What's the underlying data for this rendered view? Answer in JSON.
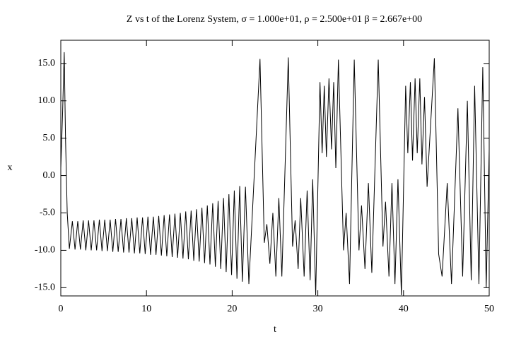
{
  "chart_data": {
    "type": "line",
    "title": "Z vs t of the Lorenz System, σ = 1.000e+01, ρ = 2.500e+01 β = 2.667e+00",
    "x_label": "t",
    "y_label": "x",
    "xlim": [
      0,
      50
    ],
    "xticks": [
      0,
      10,
      20,
      30,
      40,
      50
    ],
    "ylim": [
      -16.1,
      18.1
    ],
    "yticks": [
      {
        "value": -15,
        "label": "-15.0"
      },
      {
        "value": -10,
        "label": "-10.0"
      },
      {
        "value": -5,
        "label": "-5.0"
      },
      {
        "value": 0,
        "label": "0.0"
      },
      {
        "value": 5,
        "label": "5.0"
      },
      {
        "value": 10,
        "label": "10.0"
      },
      {
        "value": 15,
        "label": "15.0"
      }
    ],
    "grid": false,
    "series": [
      {
        "color": "#000000",
        "x": [
          0,
          0.2,
          0.4,
          0.55,
          0.75,
          1.0,
          1.35,
          1.66,
          1.98,
          2.29,
          2.61,
          2.92,
          3.24,
          3.55,
          3.87,
          4.18,
          4.5,
          4.81,
          5.13,
          5.44,
          5.76,
          6.07,
          6.39,
          6.7,
          7.02,
          7.33,
          7.65,
          7.96,
          8.28,
          8.59,
          8.91,
          9.22,
          9.54,
          9.85,
          10.17,
          10.48,
          10.8,
          11.11,
          11.43,
          11.74,
          12.06,
          12.37,
          12.69,
          13.0,
          13.32,
          13.63,
          13.95,
          14.26,
          14.58,
          14.89,
          15.21,
          15.52,
          15.84,
          16.15,
          16.47,
          16.78,
          17.1,
          17.41,
          17.73,
          18.04,
          18.36,
          18.67,
          18.99,
          19.3,
          19.62,
          19.93,
          20.25,
          20.56,
          20.88,
          21.19,
          21.55,
          21.95,
          23.25,
          23.75,
          24.05,
          24.4,
          24.75,
          25.1,
          25.45,
          25.8,
          26.55,
          27.05,
          27.35,
          27.7,
          28.0,
          28.4,
          28.75,
          29.1,
          29.4,
          29.75,
          30.25,
          30.5,
          30.75,
          31.0,
          31.3,
          31.6,
          31.85,
          32.1,
          32.4,
          33.0,
          33.3,
          33.7,
          34.25,
          34.8,
          35.1,
          35.5,
          35.9,
          36.3,
          37.05,
          37.6,
          37.9,
          38.3,
          38.65,
          39.0,
          39.35,
          39.75,
          40.25,
          40.5,
          40.8,
          41.05,
          41.35,
          41.6,
          41.9,
          42.15,
          42.45,
          42.75,
          43.6,
          44.1,
          44.5,
          45.1,
          45.6,
          46.35,
          46.9,
          47.45,
          47.9,
          48.3,
          48.8,
          49.25,
          49.65,
          50.0
        ],
        "values": [
          1.0,
          8.0,
          16.5,
          5.0,
          -5.0,
          -9.8,
          -6.1,
          -9.9,
          -6.1,
          -9.9,
          -6.0,
          -10.0,
          -6.0,
          -10.0,
          -6.0,
          -10.0,
          -5.9,
          -10.1,
          -5.9,
          -10.1,
          -5.9,
          -10.2,
          -5.8,
          -10.2,
          -5.8,
          -10.3,
          -5.7,
          -10.3,
          -5.7,
          -10.4,
          -5.6,
          -10.4,
          -5.6,
          -10.5,
          -5.5,
          -10.6,
          -5.5,
          -10.6,
          -5.4,
          -10.7,
          -5.3,
          -10.8,
          -5.2,
          -10.9,
          -5.1,
          -11.0,
          -5.0,
          -11.1,
          -4.8,
          -11.2,
          -4.7,
          -11.4,
          -4.5,
          -11.5,
          -4.3,
          -11.7,
          -4.0,
          -11.9,
          -3.7,
          -12.2,
          -3.4,
          -12.5,
          -3.0,
          -12.9,
          -2.5,
          -13.3,
          -2.0,
          -13.8,
          -1.4,
          -14.2,
          -1.5,
          -14.5,
          15.6,
          -9.0,
          -6.5,
          -11.8,
          -5.0,
          -13.5,
          -3.0,
          -13.5,
          15.8,
          -9.5,
          -6.0,
          -12.5,
          -3.0,
          -13.5,
          -2.0,
          -14.0,
          -0.5,
          -16.0,
          12.5,
          3.0,
          12.0,
          2.5,
          13.0,
          3.5,
          12.5,
          1.0,
          15.5,
          -10.0,
          -5.0,
          -14.5,
          15.5,
          -10.0,
          -4.0,
          -12.5,
          -1.0,
          -13.0,
          15.5,
          -9.5,
          -3.5,
          -13.5,
          -1.0,
          -14.5,
          -0.5,
          -16.0,
          12.0,
          3.0,
          12.5,
          2.0,
          13.0,
          3.0,
          13.0,
          1.5,
          10.5,
          -1.5,
          15.7,
          -10.5,
          -13.5,
          -1.0,
          -14.5,
          9.0,
          -13.5,
          10.0,
          -14.0,
          12.0,
          -14.5,
          14.5,
          -15.0,
          3.5
        ]
      }
    ]
  }
}
